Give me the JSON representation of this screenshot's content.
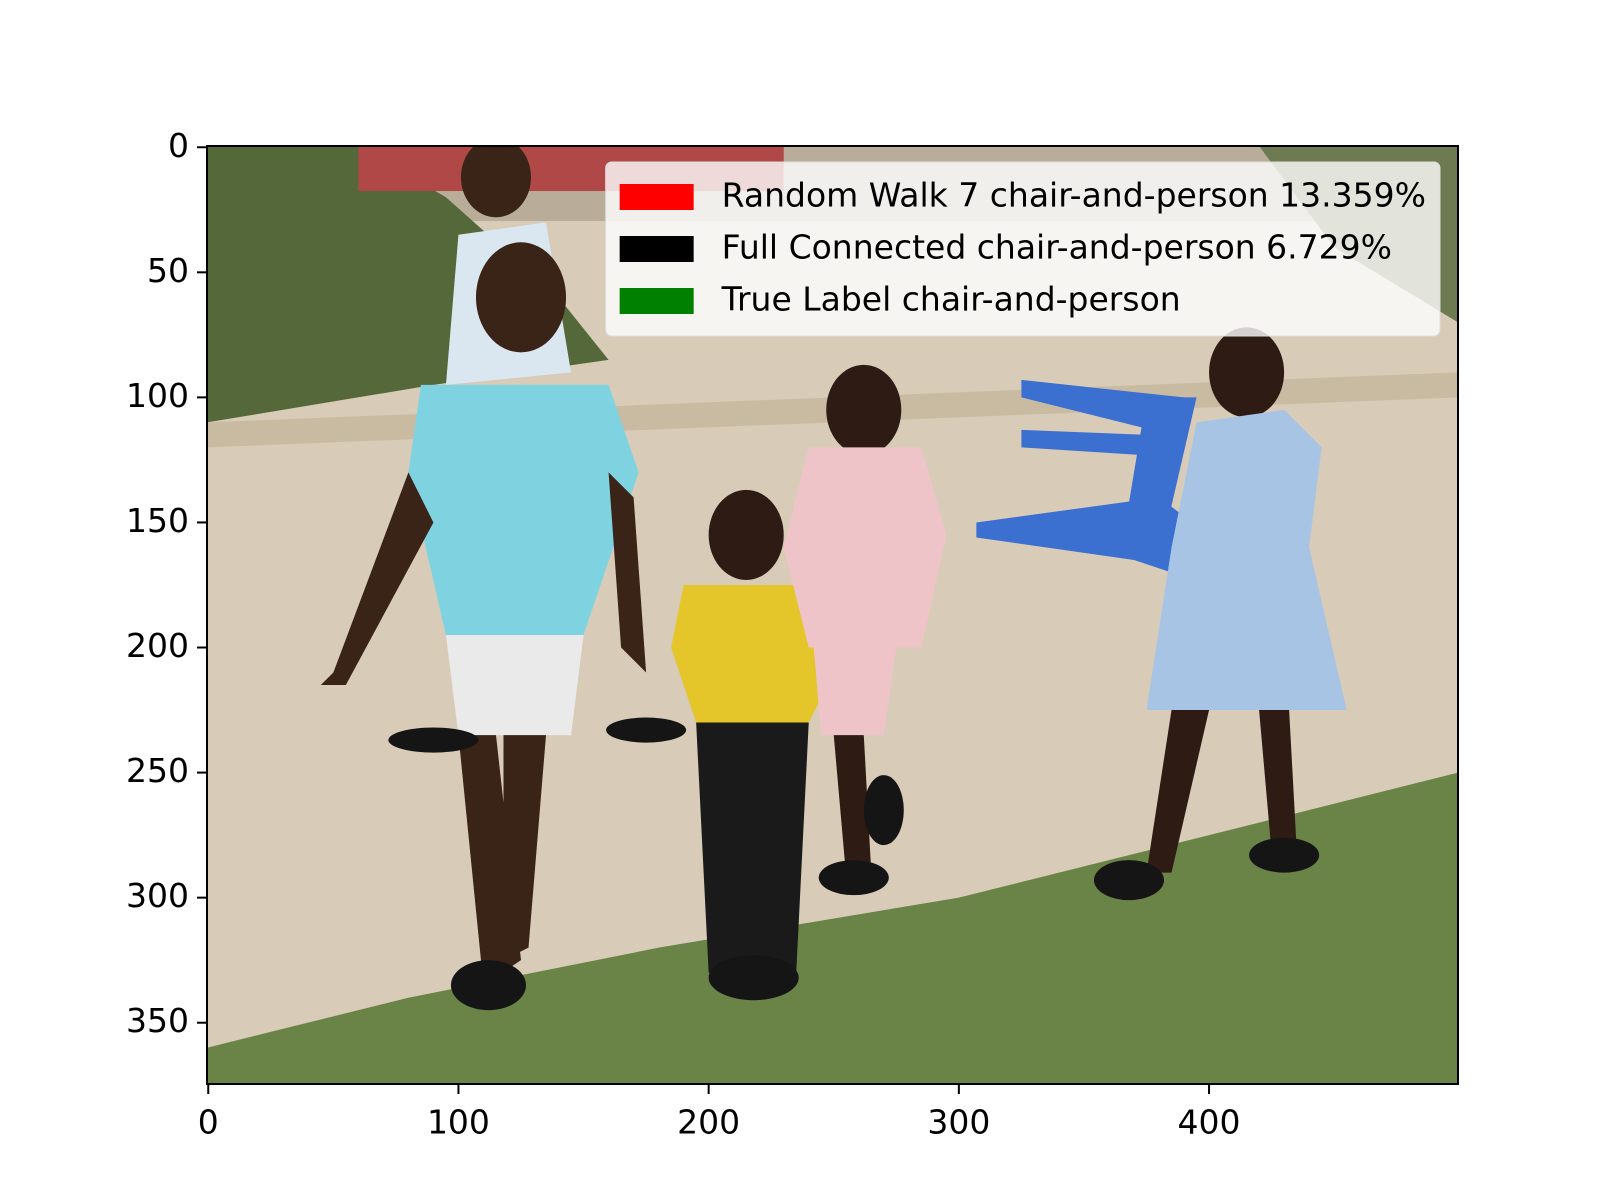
{
  "chart_data": {
    "type": "image",
    "xlim": [
      -0.5,
      499.5
    ],
    "ylim": [
      374.5,
      -0.5
    ],
    "xticks": [
      0,
      100,
      200,
      300,
      400
    ],
    "yticks": [
      0,
      50,
      100,
      150,
      200,
      250,
      300,
      350
    ],
    "legend_loc": "upper right",
    "legend": [
      {
        "label": "Random Walk 7  chair-and-person 13.359%",
        "color": "#ff0000"
      },
      {
        "label": "Full Connected   chair-and-person 6.729%",
        "color": "#000000"
      },
      {
        "label": "True Label chair-and-person",
        "color": "#008000"
      }
    ]
  }
}
